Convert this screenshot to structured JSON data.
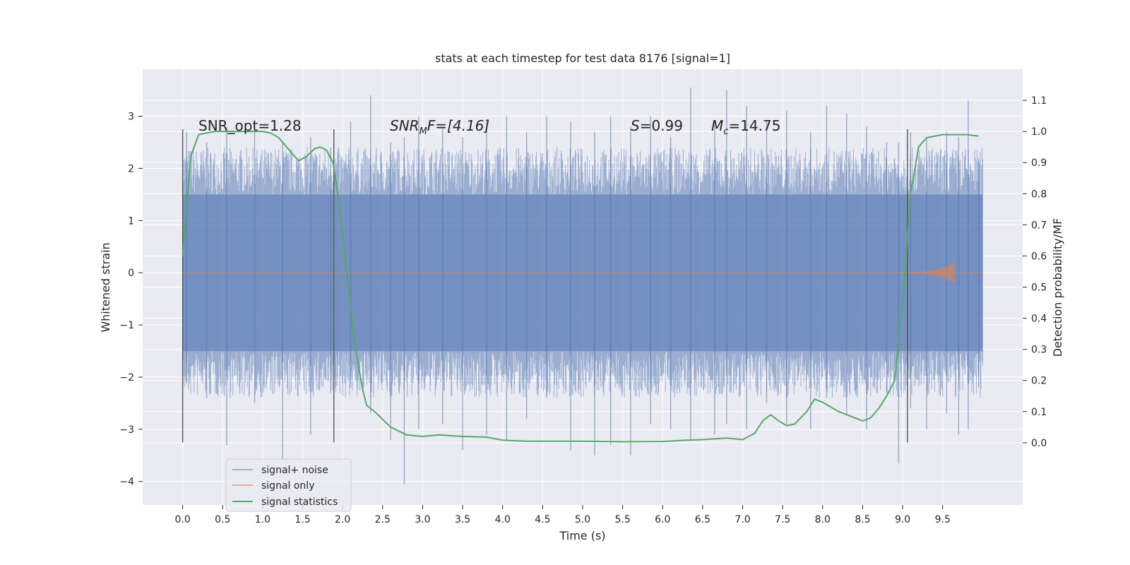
{
  "chart_data": {
    "type": "line",
    "title": "stats at each timestep for test data 8176 [signal=1]",
    "xlabel": "Time (s)",
    "ylabel": "Whitened strain",
    "y2label": "Detection probability/MF",
    "xlim": [
      -0.5,
      10.5
    ],
    "ylim": [
      -4.45,
      3.9
    ],
    "y2lim": [
      -0.2,
      1.2
    ],
    "x_ticks": [
      "0.0",
      "0.5",
      "1.0",
      "1.5",
      "2.0",
      "2.5",
      "3.0",
      "3.5",
      "4.0",
      "4.5",
      "5.0",
      "5.5",
      "6.0",
      "6.5",
      "7.0",
      "7.5",
      "8.0",
      "8.5",
      "9.0",
      "9.5"
    ],
    "y_ticks": [
      3,
      2,
      1,
      0,
      -1,
      -2,
      -3,
      -4
    ],
    "y_tick_labels": [
      "3",
      "2",
      "1",
      "0",
      "−1",
      "−2",
      "−3",
      "−4"
    ],
    "y2_ticks": [
      "1.1",
      "1.0",
      "0.9",
      "0.8",
      "0.7",
      "0.6",
      "0.5",
      "0.4",
      "0.3",
      "0.2",
      "0.1",
      "0.0"
    ],
    "grid": true,
    "legend_placement": "lower-left",
    "annotations": {
      "snr_opt": "SNR_opt=1.28",
      "snr_mf_pre": "SNR",
      "snr_mf_sub": "M",
      "snr_mf_post": "F=[4.16]",
      "s_label": "S",
      "s_value": "=0.99",
      "mc_label": "M",
      "mc_sub": "c",
      "mc_value": "=14.75"
    },
    "vertical_markers_x": [
      0.0,
      1.89,
      9.06
    ],
    "series": [
      {
        "name": "signal+ noise",
        "color": "#4c72b0",
        "x_range": [
          0.0,
          10.0
        ],
        "core_band": [
          -1.5,
          1.5
        ],
        "spikes": [
          [
            0.05,
            -2.1,
            2.7
          ],
          [
            0.3,
            -2.4,
            2.5
          ],
          [
            0.55,
            -3.3,
            2.8
          ],
          [
            0.9,
            -2.5,
            2.9
          ],
          [
            1.25,
            -3.6,
            2.5
          ],
          [
            1.6,
            -3.1,
            2.6
          ],
          [
            1.85,
            -2.3,
            2.4
          ],
          [
            2.1,
            -2.2,
            2.9
          ],
          [
            2.35,
            -2.7,
            3.4
          ],
          [
            2.6,
            -3.2,
            2.5
          ],
          [
            2.77,
            -4.05,
            2.6
          ],
          [
            2.95,
            -3.0,
            3.0
          ],
          [
            3.25,
            -2.9,
            2.8
          ],
          [
            3.5,
            -3.4,
            2.6
          ],
          [
            3.8,
            -3.1,
            2.9
          ],
          [
            4.05,
            -3.2,
            3.0
          ],
          [
            4.3,
            -2.8,
            2.7
          ],
          [
            4.55,
            -2.4,
            3.0
          ],
          [
            4.85,
            -3.4,
            2.9
          ],
          [
            5.15,
            -3.5,
            2.7
          ],
          [
            5.35,
            -3.3,
            3.0
          ],
          [
            5.6,
            -3.5,
            2.8
          ],
          [
            5.85,
            -2.9,
            3.0
          ],
          [
            6.1,
            -3.0,
            2.6
          ],
          [
            6.35,
            -3.2,
            3.55
          ],
          [
            6.65,
            -3.1,
            2.9
          ],
          [
            6.8,
            -2.9,
            3.5
          ],
          [
            7.05,
            -3.0,
            3.2
          ],
          [
            7.3,
            -2.5,
            2.9
          ],
          [
            7.55,
            -2.9,
            3.1
          ],
          [
            7.85,
            -3.0,
            2.7
          ],
          [
            8.05,
            -2.4,
            3.2
          ],
          [
            8.3,
            -2.7,
            3.05
          ],
          [
            8.55,
            -3.0,
            2.8
          ],
          [
            8.8,
            -2.3,
            2.5
          ],
          [
            8.95,
            -3.65,
            2.5
          ],
          [
            9.1,
            -2.6,
            2.7
          ],
          [
            9.3,
            -3.0,
            2.6
          ],
          [
            9.55,
            -2.7,
            2.7
          ],
          [
            9.7,
            -3.1,
            2.6
          ],
          [
            9.82,
            -3.0,
            3.3
          ],
          [
            9.95,
            -2.2,
            2.2
          ]
        ]
      },
      {
        "name": "signal only",
        "color": "#dd8452",
        "x_range": [
          0.0,
          10.0
        ],
        "chirp_start": 8.9,
        "chirp_peak_x": 9.65,
        "chirp_peak_amp": 0.2
      },
      {
        "name": "signal statistics",
        "color": "#55a868",
        "axis": "right",
        "x": [
          0.0,
          0.05,
          0.1,
          0.2,
          0.4,
          0.6,
          0.8,
          1.0,
          1.1,
          1.2,
          1.3,
          1.4,
          1.45,
          1.55,
          1.65,
          1.72,
          1.8,
          1.88,
          1.95,
          2.05,
          2.15,
          2.25,
          2.3,
          2.4,
          2.6,
          2.8,
          3.0,
          3.2,
          3.5,
          3.8,
          4.0,
          4.3,
          5.0,
          5.5,
          6.0,
          6.3,
          6.5,
          6.8,
          7.0,
          7.15,
          7.25,
          7.35,
          7.45,
          7.55,
          7.65,
          7.8,
          7.9,
          8.0,
          8.2,
          8.4,
          8.5,
          8.6,
          8.7,
          8.8,
          8.9,
          9.0,
          9.1,
          9.2,
          9.3,
          9.5,
          9.8,
          9.95
        ],
        "values": [
          0.6,
          0.75,
          0.92,
          0.99,
          1.0,
          1.0,
          1.0,
          1.0,
          0.995,
          0.98,
          0.95,
          0.92,
          0.905,
          0.92,
          0.945,
          0.95,
          0.94,
          0.9,
          0.78,
          0.55,
          0.32,
          0.17,
          0.12,
          0.1,
          0.05,
          0.025,
          0.02,
          0.025,
          0.02,
          0.018,
          0.008,
          0.005,
          0.005,
          0.003,
          0.004,
          0.008,
          0.01,
          0.015,
          0.01,
          0.03,
          0.07,
          0.09,
          0.07,
          0.055,
          0.06,
          0.1,
          0.14,
          0.13,
          0.1,
          0.08,
          0.07,
          0.08,
          0.11,
          0.15,
          0.2,
          0.45,
          0.8,
          0.95,
          0.98,
          0.99,
          0.99,
          0.985
        ]
      }
    ]
  }
}
